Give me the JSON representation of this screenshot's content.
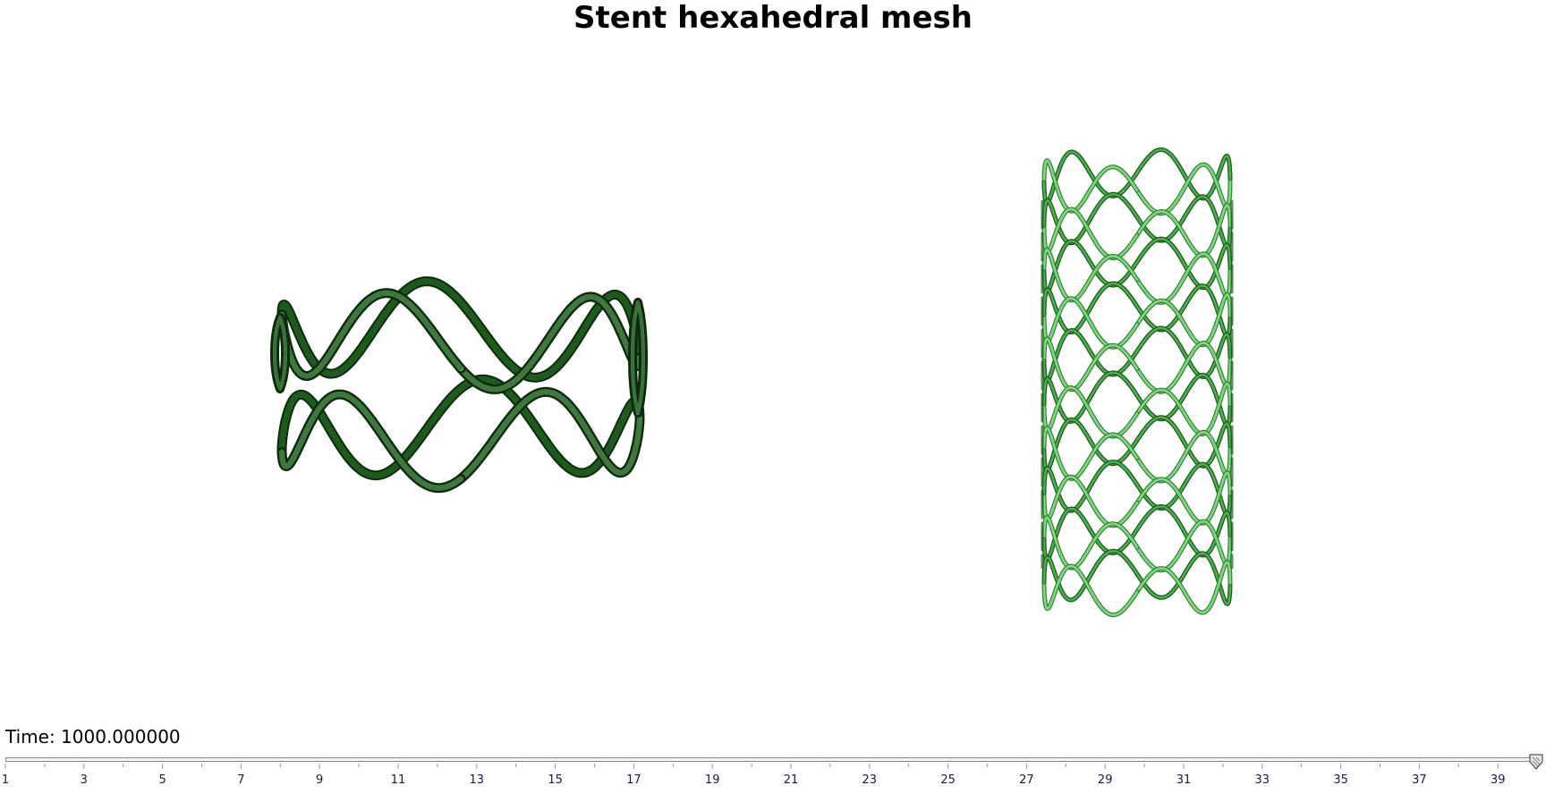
{
  "title": "Stent hexahedral mesh",
  "time_readout": "Time: 1000.000000",
  "timeline": {
    "ticks": [
      "1",
      "3",
      "5",
      "7",
      "9",
      "11",
      "13",
      "15",
      "17",
      "19",
      "21",
      "23",
      "25",
      "27",
      "29",
      "31",
      "33",
      "35",
      "37",
      "39"
    ],
    "position": 1.0
  },
  "colors": {
    "mesh_light": "#7fd67f",
    "mesh_mid": "#4caf50",
    "mesh_dark": "#1e5a1e",
    "mesh_edge": "#0d2a0d"
  },
  "models": [
    {
      "label": "",
      "type": "single-ring-stent"
    },
    {
      "label": "",
      "type": "full-stent"
    }
  ]
}
